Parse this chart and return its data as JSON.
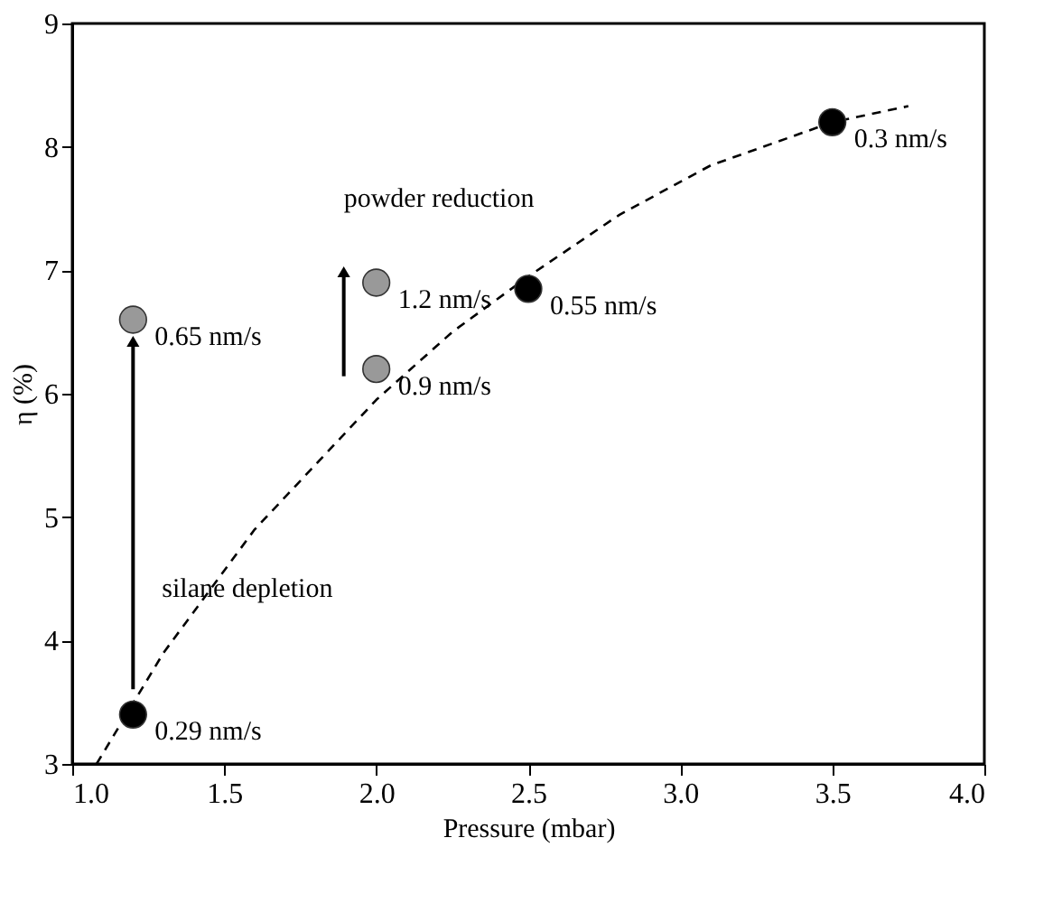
{
  "chart_data": {
    "type": "scatter",
    "xlabel": "Pressure (mbar)",
    "ylabel": "η (%)",
    "xlim": [
      1.0,
      4.0
    ],
    "ylim": [
      3,
      9
    ],
    "xticks": [
      {
        "value": 1.0,
        "label": "1.0"
      },
      {
        "value": 1.5,
        "label": "1.5"
      },
      {
        "value": 2.0,
        "label": "2.0"
      },
      {
        "value": 2.5,
        "label": "2.5"
      },
      {
        "value": 3.0,
        "label": "3.0"
      },
      {
        "value": 3.5,
        "label": "3.5"
      },
      {
        "value": 4.0,
        "label": "4.0"
      }
    ],
    "yticks": [
      3,
      4,
      5,
      6,
      7,
      8,
      9
    ],
    "grid": false,
    "series": [
      {
        "type": "line",
        "color": "#000000",
        "line_style": "dashed",
        "marker": "none",
        "x": [
          1.08,
          1.3,
          1.6,
          2.0,
          2.25,
          2.5,
          2.8,
          3.1,
          3.5,
          3.75
        ],
        "values": [
          3.0,
          3.9,
          4.9,
          5.95,
          6.5,
          6.95,
          7.45,
          7.85,
          8.2,
          8.33
        ]
      },
      {
        "color": "#000000",
        "marker": "circle",
        "x": [
          1.2,
          2.5,
          3.5
        ],
        "values": [
          3.4,
          6.85,
          8.2
        ]
      },
      {
        "color": "#999999",
        "marker": "circle",
        "x": [
          1.2,
          2.0,
          2.0
        ],
        "values": [
          6.6,
          6.9,
          6.2
        ]
      }
    ],
    "annotations": [
      {
        "text": "0.29 nm/s",
        "x": 1.2,
        "y": 3.4
      },
      {
        "text": "0.65 nm/s",
        "x": 1.2,
        "y": 6.6
      },
      {
        "text": "1.2 nm/s",
        "x": 2.0,
        "y": 6.9
      },
      {
        "text": "0.9 nm/s",
        "x": 2.0,
        "y": 6.2
      },
      {
        "text": "0.55 nm/s",
        "x": 2.5,
        "y": 6.85
      },
      {
        "text": "0.3 nm/s",
        "x": 3.5,
        "y": 8.2
      },
      "silane depletion",
      "powder reduction"
    ]
  }
}
